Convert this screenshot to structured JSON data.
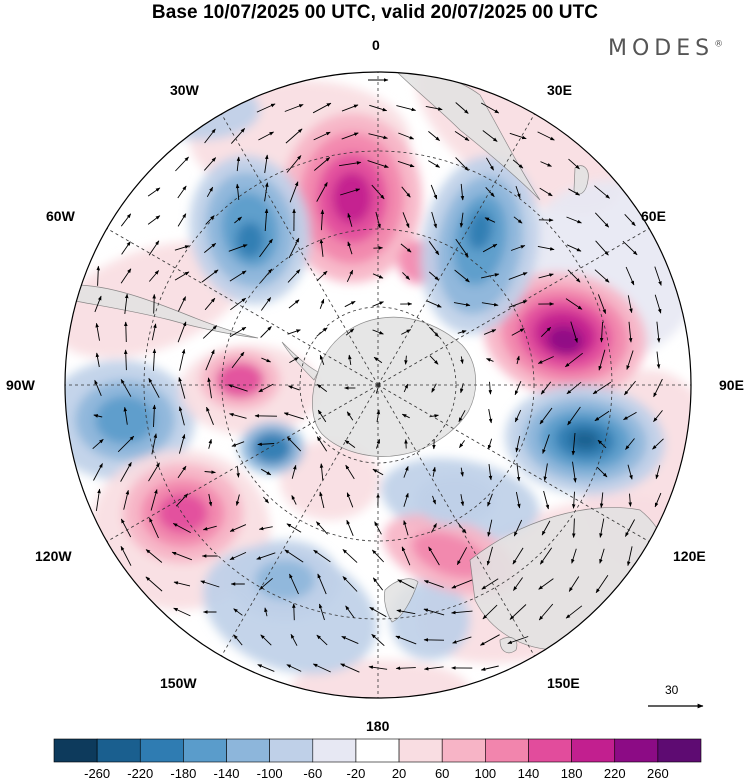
{
  "title": "Base 10/07/2025 00 UTC, valid 20/07/2025 00 UTC",
  "logo": "MODES",
  "logo_mark": "®",
  "map": {
    "projection": "south-polar-stereographic",
    "longitude_labels": {
      "lon_0": "0",
      "lon_30e": "30E",
      "lon_60e": "60E",
      "lon_90e": "90E",
      "lon_120e": "120E",
      "lon_150e": "150E",
      "lon_180": "180",
      "lon_150w": "150W",
      "lon_120w": "120W",
      "lon_90w": "90W",
      "lon_60w": "60W",
      "lon_30w": "30W"
    },
    "reference_vector": "30",
    "colors": {
      "land": "#e2e2e2",
      "coast": "#777777",
      "grid": "#333333"
    }
  },
  "colorbar": {
    "labels": [
      "-260",
      "-220",
      "-180",
      "-140",
      "-100",
      "-60",
      "-20",
      "20",
      "60",
      "100",
      "140",
      "180",
      "220",
      "260"
    ],
    "colors": [
      "#0d3a5c",
      "#1a5f8f",
      "#2f7cb2",
      "#5a9ccb",
      "#8db6db",
      "#bfd0e8",
      "#e7e8f3",
      "#ffffff",
      "#f9dde2",
      "#f7b4c6",
      "#f285ad",
      "#e24c9c",
      "#c21f8f",
      "#8c0b85",
      "#5e0b72"
    ]
  }
}
